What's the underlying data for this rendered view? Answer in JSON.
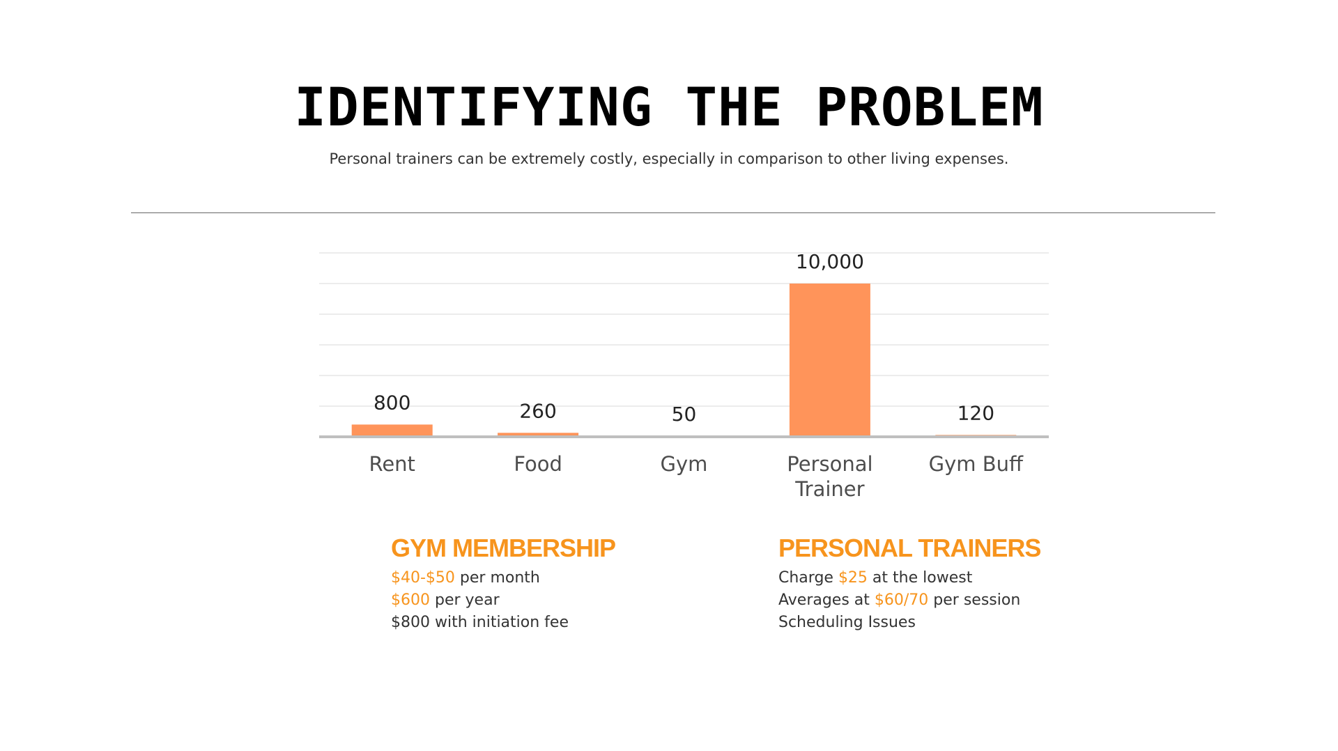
{
  "title": "IDENTIFYING THE PROBLEM",
  "subtitle": "Personal trainers can be extremely costly, especially in comparison to other living expenses.",
  "colors": {
    "accent": "#f7941d",
    "bar": "#ff945a",
    "text": "#333333"
  },
  "chart_data": {
    "type": "bar",
    "categories": [
      "Rent",
      "Food",
      "Gym",
      "Personal Trainer",
      "Gym Buff"
    ],
    "category_lines": [
      [
        "Rent"
      ],
      [
        "Food"
      ],
      [
        "Gym"
      ],
      [
        "Personal",
        "Trainer"
      ],
      [
        "Gym Buff"
      ]
    ],
    "values": [
      800,
      260,
      50,
      10000,
      120
    ],
    "value_labels": [
      "800",
      "260",
      "50",
      "10,000",
      "120"
    ],
    "title": "",
    "xlabel": "",
    "ylabel": "",
    "ylim": [
      0,
      12000
    ],
    "grid": true,
    "legend": "none"
  },
  "gym": {
    "heading": "GYM MEMBERSHIP",
    "l1_hl": "$40-$50",
    "l1_rest": " per month",
    "l2_hl": "$600",
    "l2_rest": " per year",
    "l3": "$800 with initiation fee"
  },
  "trainers": {
    "heading": "PERSONAL TRAINERS",
    "l1_pre": "Charge ",
    "l1_hl": "$25",
    "l1_post": " at the lowest",
    "l2_pre": "Averages at ",
    "l2_hl": "$60/70",
    "l2_post": " per session",
    "l3": "Scheduling Issues"
  }
}
